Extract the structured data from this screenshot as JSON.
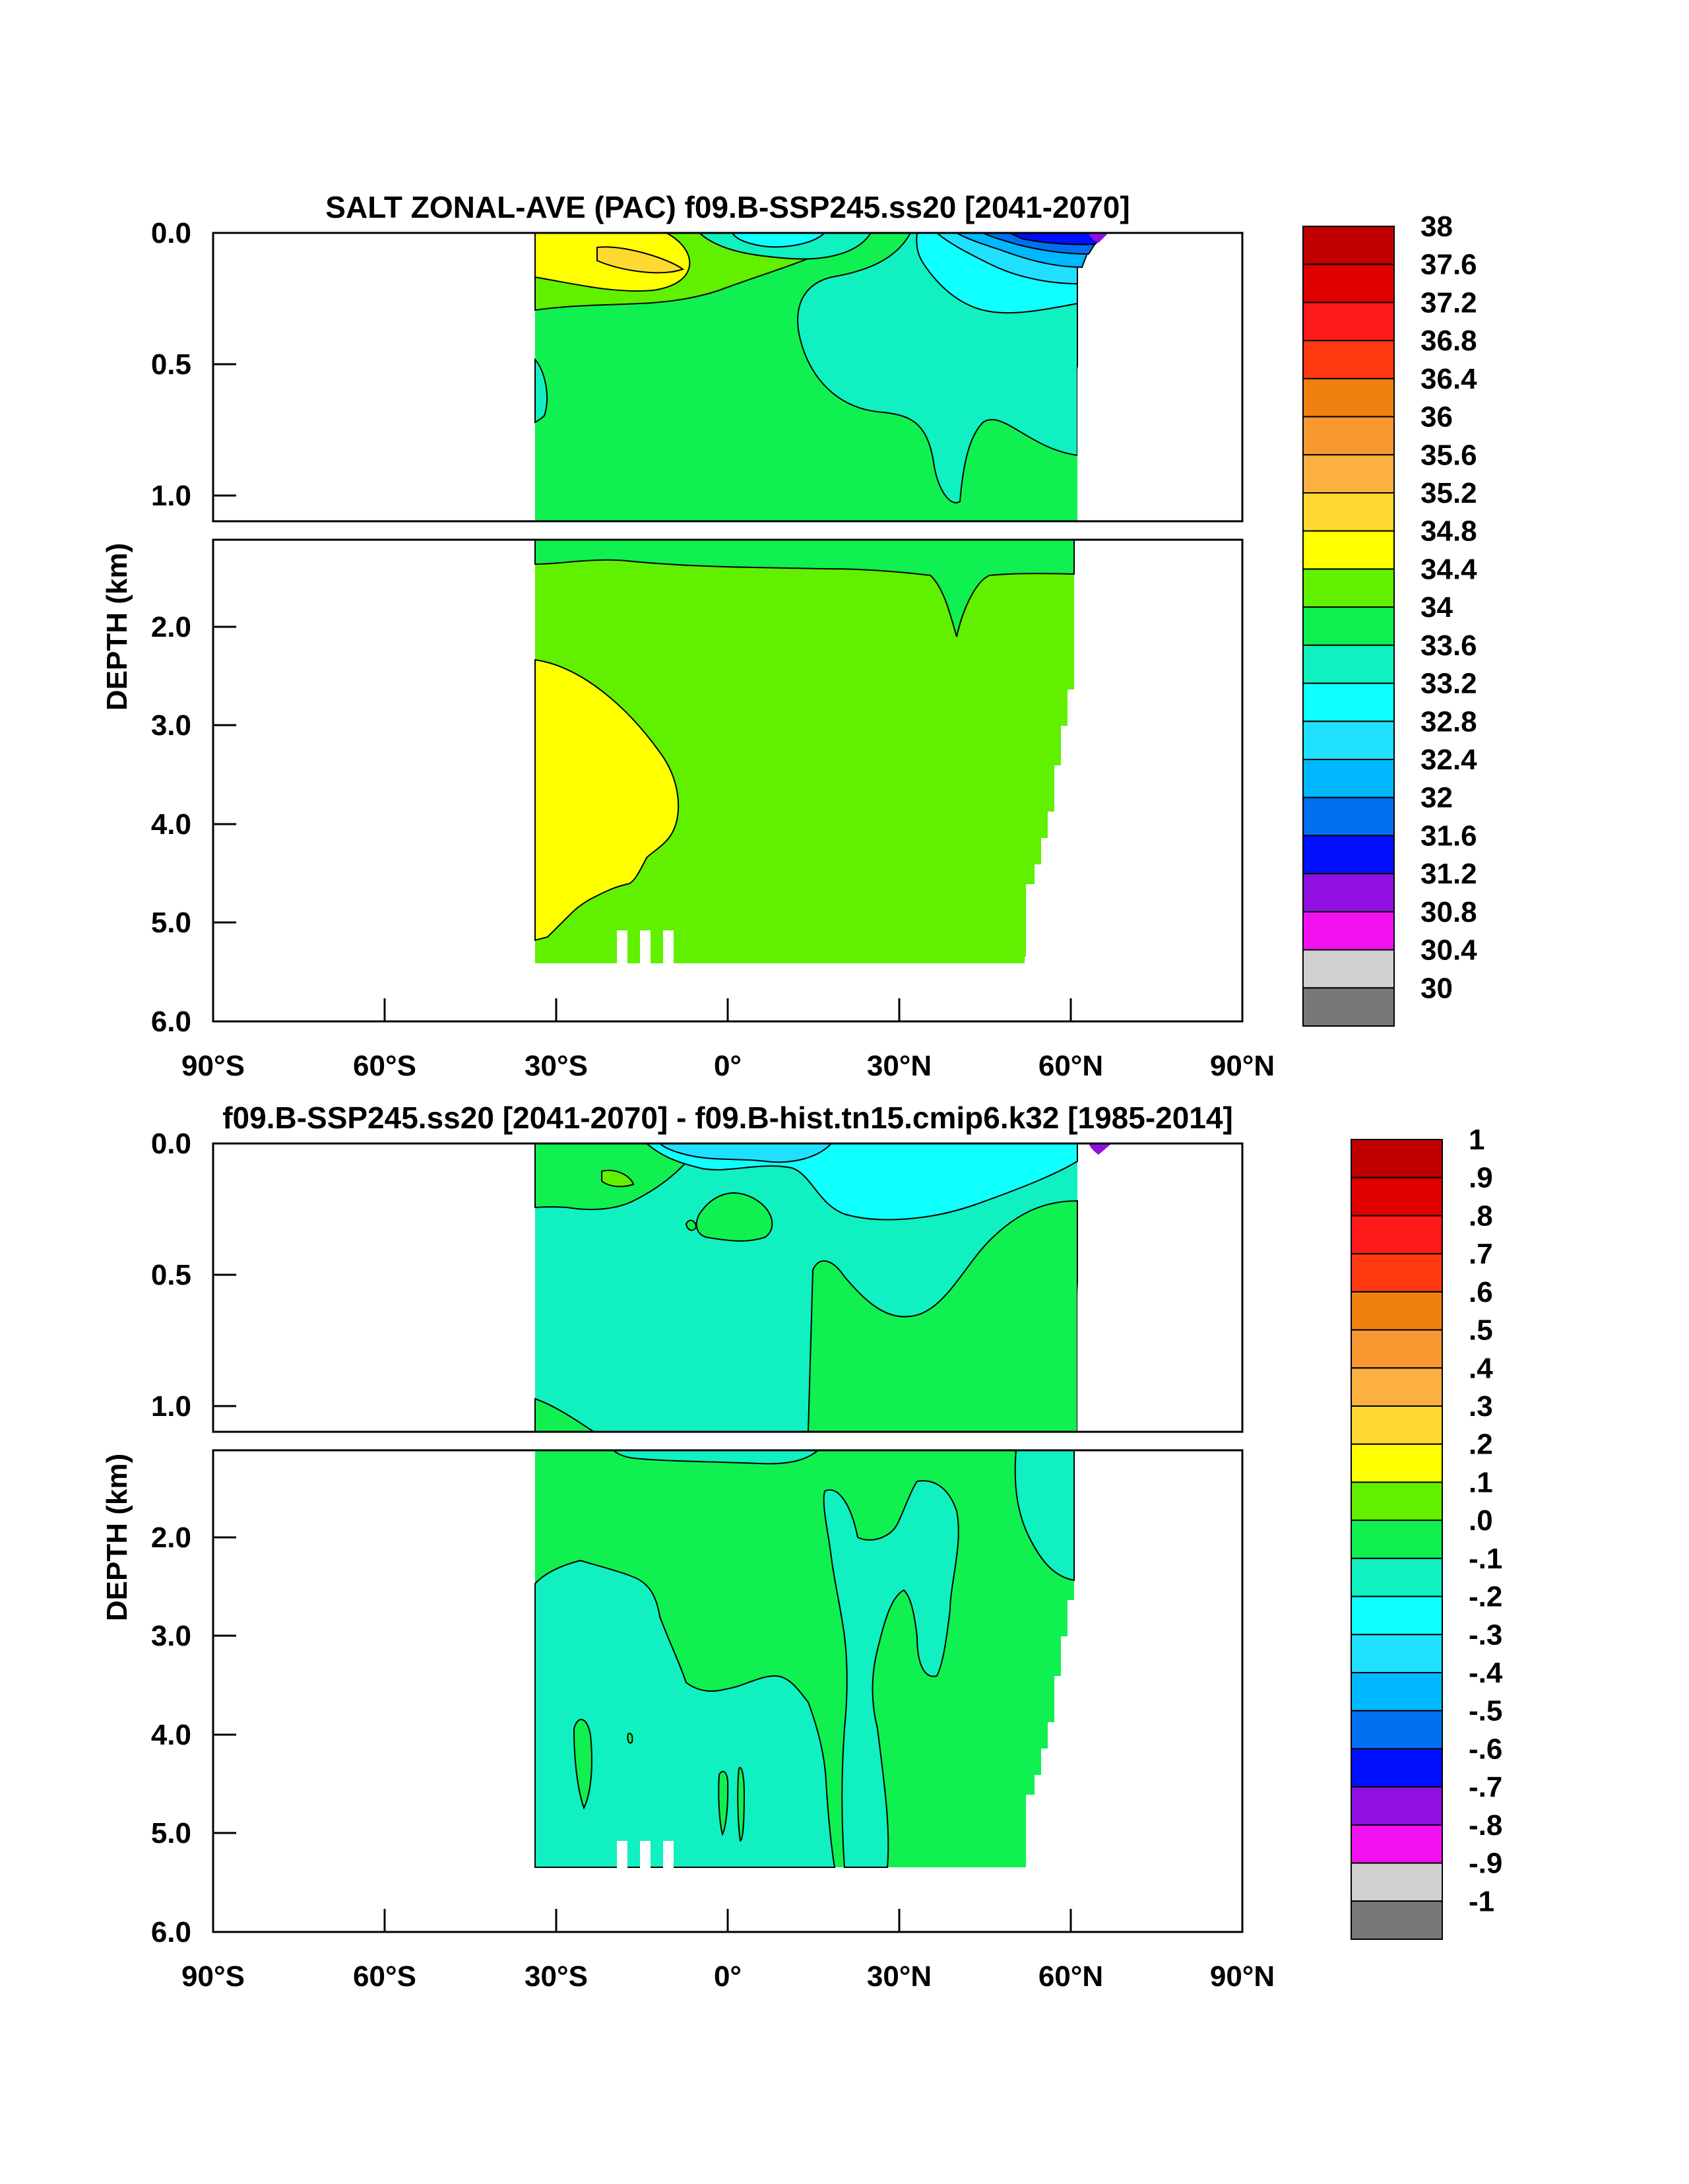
{
  "chart_data": [
    {
      "type": "heatmap",
      "title": "SALT ZONAL-AVE (PAC) f09.B-SSP245.ss20 [2041-2070]",
      "ylabel": "DEPTH (km)",
      "xlabel": "",
      "x_ticks": [
        "90°S",
        "60°S",
        "30°S",
        "0°",
        "30°N",
        "60°N",
        "90°N"
      ],
      "y_ticks_upper": [
        "0.0",
        "0.5",
        "1.0"
      ],
      "y_ticks_lower": [
        "2.0",
        "3.0",
        "4.0",
        "5.0",
        "6.0"
      ],
      "xlim": [
        -90,
        90
      ],
      "ylim_km": [
        0,
        6
      ],
      "data_extent": {
        "lat_min": -34,
        "lat_max": 61,
        "max_depth_km": 5.4
      },
      "colorbar": {
        "labels": [
          "38",
          "37.6",
          "37.2",
          "36.8",
          "36.4",
          "36",
          "35.6",
          "35.2",
          "34.8",
          "34.4",
          "34",
          "33.6",
          "33.2",
          "32.8",
          "32.4",
          "32",
          "31.6",
          "31.2",
          "30.8",
          "30.4",
          "30"
        ],
        "colors": [
          "#c00000",
          "#e00000",
          "#ff1a1a",
          "#ff3a10",
          "#f08010",
          "#f89830",
          "#fbb040",
          "#ffd830",
          "#ffff00",
          "#60f000",
          "#10f050",
          "#10f0c0",
          "#10ffff",
          "#20e0ff",
          "#00b8ff",
          "#0070f0",
          "#0010ff",
          "#9010e0",
          "#f010f0",
          "#d0d0d0",
          "#787878"
        ]
      }
    },
    {
      "type": "heatmap",
      "title": "f09.B-SSP245.ss20 [2041-2070] - f09.B-hist.tn15.cmip6.k32 [1985-2014]",
      "ylabel": "DEPTH (km)",
      "xlabel": "",
      "x_ticks": [
        "90°S",
        "60°S",
        "30°S",
        "0°",
        "30°N",
        "60°N",
        "90°N"
      ],
      "y_ticks_upper": [
        "0.0",
        "0.5",
        "1.0"
      ],
      "y_ticks_lower": [
        "2.0",
        "3.0",
        "4.0",
        "5.0",
        "6.0"
      ],
      "xlim": [
        -90,
        90
      ],
      "ylim_km": [
        0,
        6
      ],
      "data_extent": {
        "lat_min": -34,
        "lat_max": 61,
        "max_depth_km": 5.4
      },
      "colorbar": {
        "labels": [
          "1",
          ".9",
          ".8",
          ".7",
          ".6",
          ".5",
          ".4",
          ".3",
          ".2",
          ".1",
          ".0",
          "-.1",
          "-.2",
          "-.3",
          "-.4",
          "-.5",
          "-.6",
          "-.7",
          "-.8",
          "-.9",
          "-1"
        ],
        "colors": [
          "#c00000",
          "#e00000",
          "#ff1a1a",
          "#ff3a10",
          "#f08010",
          "#f89830",
          "#fbb040",
          "#ffd830",
          "#ffff00",
          "#60f000",
          "#10f050",
          "#10f0c0",
          "#10ffff",
          "#20e0ff",
          "#00b8ff",
          "#0070f0",
          "#0010ff",
          "#9010e0",
          "#f010f0",
          "#d0d0d0",
          "#787878"
        ]
      }
    }
  ]
}
